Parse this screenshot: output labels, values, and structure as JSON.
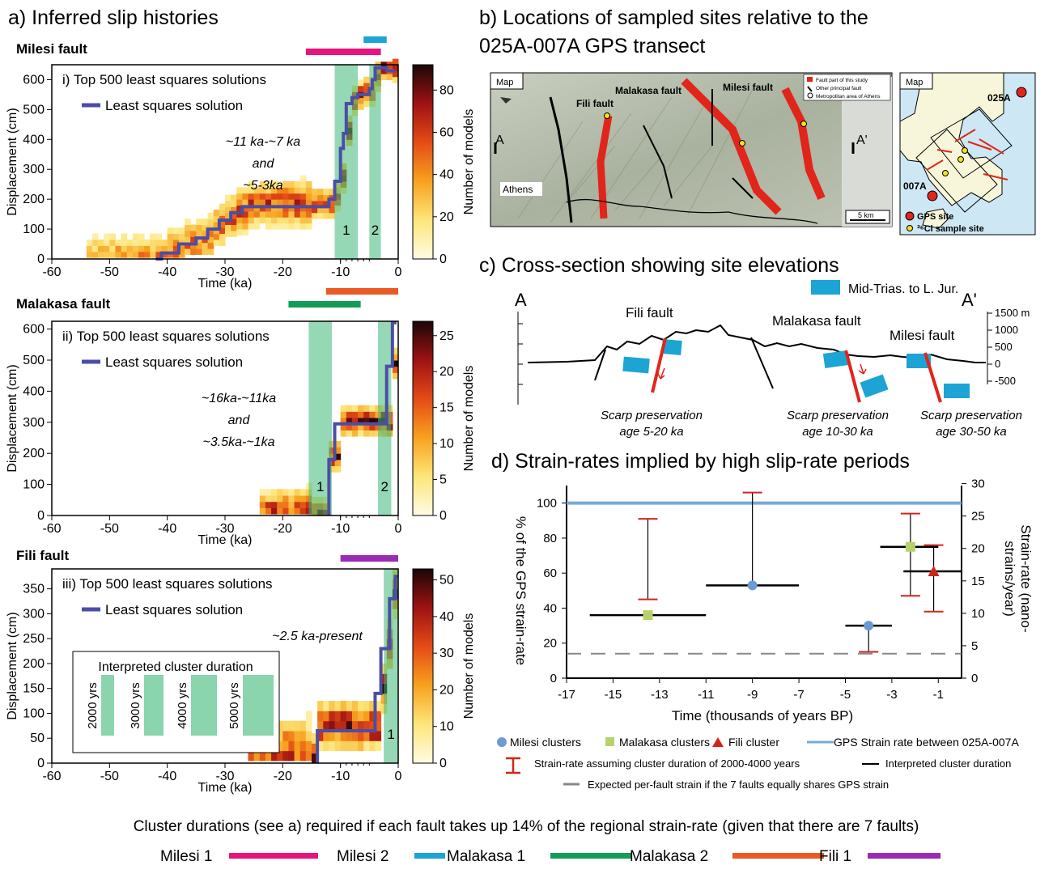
{
  "panel_a": {
    "title": "a) Inferred slip histories",
    "xlabel": "Time (ka)",
    "ylabel": "Displacement (cm)",
    "cbar_label": "Number of models",
    "xticks": [
      "-60",
      "-50",
      "-40",
      "-30",
      "-20",
      "-10",
      "0"
    ],
    "subplots": [
      {
        "fault": "Milesi fault",
        "legend1": "i)  Top 500 least squares solutions",
        "legend2": "Least squares solution",
        "annot": [
          "~11 ka-~7 ka",
          "and",
          "~5-3ka"
        ],
        "yticks": [
          "0",
          "100",
          "200",
          "300",
          "400",
          "500",
          "600"
        ],
        "ymax": 650,
        "cbar_ticks": [
          "0",
          "20",
          "40",
          "60",
          "80"
        ],
        "cbar_max": 92,
        "cluster_labels": [
          "1",
          "2"
        ]
      },
      {
        "fault": "Malakasa fault",
        "legend1": "ii)  Top 500 least squares solutions",
        "legend2": "Least squares solution",
        "annot": [
          "~16ka-~11ka",
          "and",
          "~3.5ka-~1ka"
        ],
        "yticks": [
          "0",
          "100",
          "200",
          "300",
          "400",
          "500",
          "600"
        ],
        "ymax": 625,
        "cbar_ticks": [
          "0",
          "5",
          "10",
          "15",
          "20",
          "25"
        ],
        "cbar_max": 27,
        "cluster_labels": [
          "1",
          "2"
        ]
      },
      {
        "fault": "Fili fault",
        "legend1": "iii)  Top 500 least squares solutions",
        "legend2": "Least squares solution",
        "annot": [
          "~2.5 ka-present"
        ],
        "yticks": [
          "0",
          "50",
          "100",
          "150",
          "200",
          "250",
          "300",
          "350"
        ],
        "ymax": 390,
        "cbar_ticks": [
          "0",
          "10",
          "20",
          "30",
          "40",
          "50"
        ],
        "cbar_max": 53,
        "cluster_labels": [
          "1"
        ]
      }
    ],
    "inset": {
      "title": "Interpreted cluster duration",
      "items": [
        "2000 yrs",
        "3000 yrs",
        "4000 yrs",
        "5000 yrs"
      ]
    }
  },
  "panel_b": {
    "title_line1": "b) Locations of sampled sites relative to the",
    "title_line2": "025A-007A GPS transect",
    "map_label": "Map",
    "labels": {
      "fili": "Fili fault",
      "malakasa": "Malakasa fault",
      "milesi": "Milesi fault",
      "a": "A",
      "a_prime": "A'",
      "athens": "Athens",
      "scale": "5 km"
    },
    "legend": [
      "Fault part of this study",
      "Other principal fault",
      "Metropolitan area of Athens"
    ],
    "map2": {
      "label": "Map",
      "site1": "025A",
      "site2": "007A",
      "legend_gps": "GPS site",
      "legend_cl": "³⁶Cl sample site"
    }
  },
  "panel_c": {
    "title": "c) Cross-section showing site elevations",
    "legend": "Mid-Trias. to L. Jur.",
    "a": "A",
    "a_prime": "A'",
    "faults": [
      "Fili fault",
      "Malakasa fault",
      "Milesi fault"
    ],
    "yticks": [
      "1500 m",
      "1000",
      "500",
      "0",
      "-500"
    ],
    "scarp1": [
      "Scarp preservation",
      "age 5-20 ka"
    ],
    "scarp2": [
      "Scarp preservation",
      "age 10-30 ka"
    ],
    "scarp3": [
      "Scarp preservation",
      "age 30-50 ka"
    ]
  },
  "panel_d": {
    "title": "d) Strain-rates implied by high slip-rate periods",
    "xlabel": "Time (thousands of years BP)",
    "ylabel_left": "% of the GPS strain-rate",
    "ylabel_right_1": "Strain-rate (nano-",
    "ylabel_right_2": "strains/year)",
    "xticks": [
      "-17",
      "-15",
      "-13",
      "-11",
      "-9",
      "-7",
      "-5",
      "-3",
      "-1"
    ],
    "yticks_left": [
      "0",
      "20",
      "40",
      "60",
      "80",
      "100"
    ],
    "yticks_right": [
      "0",
      "5",
      "10",
      "15",
      "20",
      "25",
      "30"
    ],
    "legend": {
      "milesi": "Milesi clusters",
      "malakasa": "Malakasa clusters",
      "fili": "Fili cluster",
      "gps": "GPS Strain rate between 025A-007A",
      "errbar": "Strain-rate assuming cluster duration of 2000-4000 years",
      "duration": "Interpreted cluster duration",
      "expected": "Expected per-fault strain if the 7 faults equally shares GPS strain"
    }
  },
  "chart_data": [
    {
      "type": "heatmap",
      "title": "Milesi fault",
      "xlabel": "Time (ka)",
      "ylabel": "Displacement (cm)",
      "xlim": [
        -60,
        0
      ],
      "ylim": [
        0,
        650
      ],
      "least_squares_solution": {
        "x": [
          -42,
          -41,
          -41,
          -38,
          -38,
          -35,
          -35,
          -33,
          -33,
          -31,
          -31,
          -29,
          -29,
          -27,
          -27,
          -12,
          -12,
          -11,
          -11,
          -10,
          -10,
          -9.5,
          -9.5,
          -9,
          -9,
          -8,
          -8,
          -7,
          -7,
          -5,
          -5,
          -4.5,
          -4.5,
          -4,
          -4,
          -3,
          -3,
          -2,
          -2,
          -0.5
        ],
        "y": [
          0,
          0,
          20,
          20,
          50,
          50,
          70,
          70,
          100,
          100,
          130,
          130,
          155,
          155,
          175,
          175,
          200,
          200,
          260,
          260,
          370,
          370,
          420,
          420,
          520,
          520,
          540,
          540,
          550,
          550,
          570,
          570,
          600,
          600,
          640,
          640,
          640,
          640,
          630,
          630
        ]
      },
      "cluster_bands": [
        {
          "label": "1",
          "x": [
            -11,
            -7
          ]
        },
        {
          "label": "2",
          "x": [
            -5,
            -3
          ]
        }
      ]
    },
    {
      "type": "heatmap",
      "title": "Malakasa fault",
      "xlabel": "Time (ka)",
      "ylabel": "Displacement (cm)",
      "xlim": [
        -60,
        0
      ],
      "ylim": [
        0,
        625
      ],
      "least_squares_solution": {
        "x": [
          -12,
          -12,
          -11,
          -11,
          -2,
          -2,
          -1,
          -1,
          -0.3
        ],
        "y": [
          0,
          180,
          180,
          295,
          295,
          480,
          480,
          620,
          620
        ]
      },
      "cluster_bands": [
        {
          "label": "1",
          "x": [
            -15.5,
            -11.5
          ]
        },
        {
          "label": "2",
          "x": [
            -3.5,
            -1.2
          ]
        }
      ]
    },
    {
      "type": "heatmap",
      "title": "Fili fault",
      "xlabel": "Time (ka)",
      "ylabel": "Displacement (cm)",
      "xlim": [
        -60,
        0
      ],
      "ylim": [
        0,
        390
      ],
      "least_squares_solution": {
        "x": [
          -14,
          -14,
          -9,
          -9,
          -4,
          -4,
          -3,
          -3,
          -1.5,
          -1.5,
          -0.5,
          -0.5,
          0
        ],
        "y": [
          0,
          65,
          65,
          65,
          65,
          140,
          140,
          230,
          230,
          330,
          330,
          375,
          375
        ]
      },
      "cluster_bands": [
        {
          "label": "1",
          "x": [
            -2.5,
            0
          ]
        }
      ]
    },
    {
      "type": "scatter",
      "title": "d) Strain-rates implied by high slip-rate periods",
      "xlabel": "Time (thousands of years BP)",
      "ylabel": "% of the GPS strain-rate",
      "xlim": [
        -17,
        0
      ],
      "ylim": [
        0,
        110
      ],
      "series": [
        {
          "name": "Milesi clusters",
          "x": [
            -9,
            -4
          ],
          "y": [
            53,
            30
          ],
          "dur_x": [
            [
              -11,
              -7
            ],
            [
              -5,
              -3
            ]
          ],
          "err": [
            [
              null,
              106
            ],
            [
              15,
              30
            ]
          ]
        },
        {
          "name": "Malakasa clusters",
          "x": [
            -13.5,
            -2.2
          ],
          "y": [
            36,
            75
          ],
          "dur_x": [
            [
              -16,
              -11
            ],
            [
              -3.5,
              -1
            ]
          ],
          "err": [
            [
              45,
              91
            ],
            [
              47,
              94
            ]
          ]
        },
        {
          "name": "Fili cluster",
          "x": [
            -1.2
          ],
          "y": [
            61
          ],
          "dur_x": [
            [
              -2.5,
              0
            ]
          ],
          "err": [
            [
              38,
              76
            ]
          ]
        }
      ],
      "gps_line": 100,
      "expected_line": 14
    }
  ],
  "bottom": {
    "caption": "Cluster durations (see a) required if each fault takes up 14% of the regional strain-rate (given that there are 7 faults)",
    "legend": [
      {
        "label": "Milesi 1",
        "color": "#e6157e"
      },
      {
        "label": "Milesi 2",
        "color": "#1ba4d4"
      },
      {
        "label": "Malakasa 1",
        "color": "#129c57"
      },
      {
        "label": "Malakasa 2",
        "color": "#ea5a24"
      },
      {
        "label": "Fili 1",
        "color": "#9b2bb5"
      }
    ]
  }
}
